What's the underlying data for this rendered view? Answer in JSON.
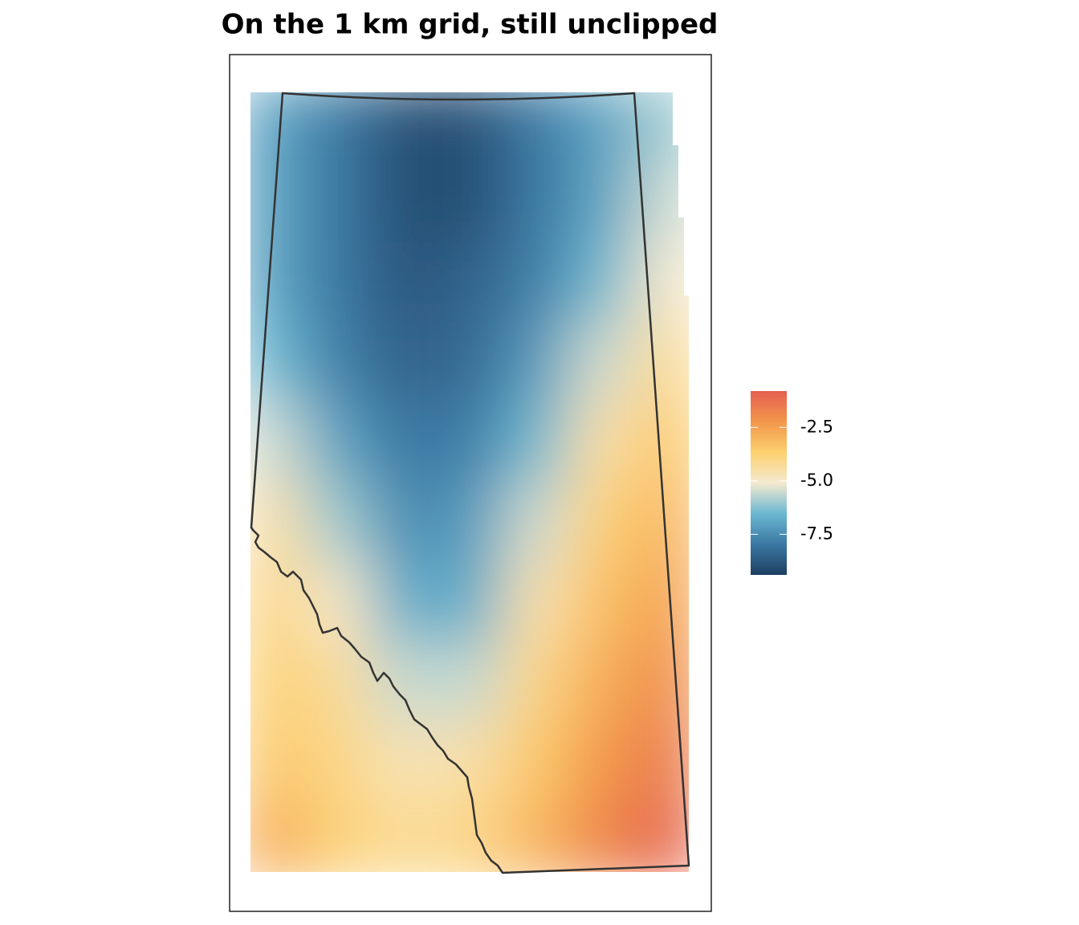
{
  "chart_data": {
    "type": "raster",
    "title": "On the 1 km grid, still unclipped",
    "colors": [
      "#1d3f63",
      "#3b78a3",
      "#6cb8d2",
      "#f4ead0",
      "#fdd06f",
      "#f2964a",
      "#e45f50"
    ],
    "clim": [
      -9.4,
      -0.8
    ],
    "cticks": [
      -2.5,
      {
        "value": -5,
        "label": "-5.0"
      },
      -7.5
    ],
    "grid_values": [
      [
        -7,
        -8,
        -9,
        -9,
        -8,
        -7,
        -6
      ],
      [
        -7,
        -8,
        -9,
        -9,
        -8,
        -7,
        -5.5
      ],
      [
        -7,
        -8,
        -8.8,
        -8.5,
        -7.8,
        -6.5,
        -5
      ],
      [
        -6.5,
        -7.8,
        -8.5,
        -8.3,
        -7.2,
        -5.5,
        -4.2
      ],
      [
        -5.5,
        -7,
        -8,
        -7.8,
        -6.5,
        -4.5,
        -3.5
      ],
      [
        -4.5,
        -6,
        -7.5,
        -7.2,
        -5.5,
        -3.8,
        -3
      ],
      [
        -4,
        -5,
        -6.8,
        -6.8,
        -4.6,
        -3.3,
        -2.5
      ],
      [
        -3.8,
        -4.3,
        -5.6,
        -5.6,
        -4,
        -2.8,
        -2
      ],
      [
        -3.5,
        -4,
        -4.7,
        -4.5,
        -3.5,
        -2.3,
        -1.5
      ],
      [
        -2.8,
        -3.8,
        -4.2,
        -4,
        -3,
        -1.8,
        -1
      ]
    ]
  }
}
